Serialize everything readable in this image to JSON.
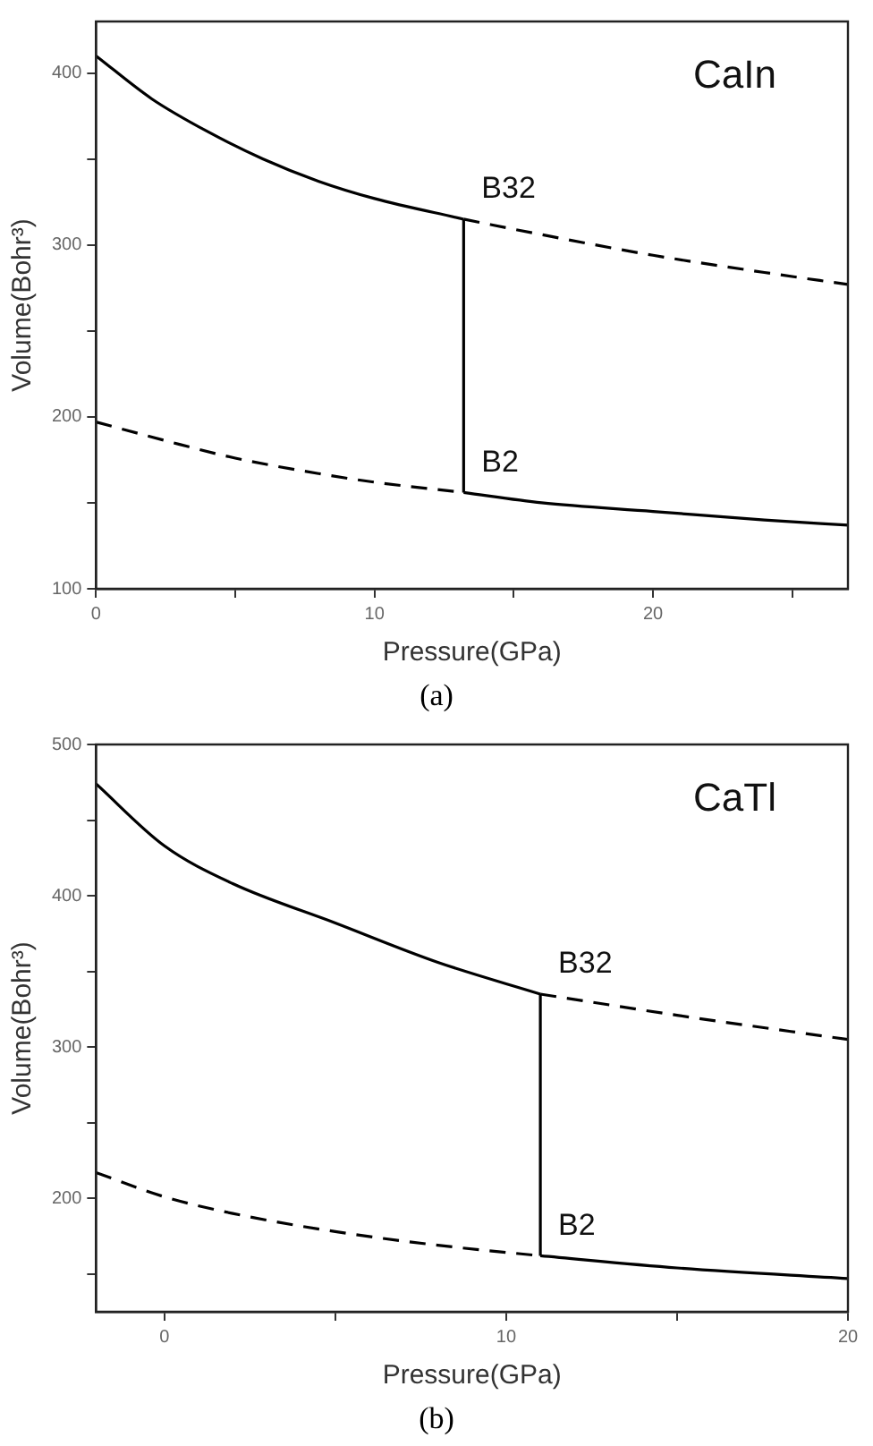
{
  "chart_data": [
    {
      "type": "line",
      "title": "CaIn",
      "xlabel": "Pressure(GPa)",
      "ylabel": "Volume(Bohr³)",
      "xlim": [
        0,
        27
      ],
      "xticks": [
        0,
        {
          "value": 5,
          "label": null
        },
        10,
        {
          "value": 15,
          "label": null
        },
        20,
        {
          "value": 25,
          "label": null
        }
      ],
      "ylim": [
        100,
        430
      ],
      "yticks": [
        100,
        {
          "value": 150,
          "label": null
        },
        200,
        {
          "value": 250,
          "label": null
        },
        300,
        {
          "value": 350,
          "label": null
        },
        400
      ],
      "grid": false,
      "legend": false,
      "marker": "none",
      "series": [
        {
          "color": "#000000",
          "line_style": "solid",
          "x": [
            0,
            2,
            4,
            6,
            8,
            10,
            13.2
          ],
          "values": [
            410,
            385,
            366,
            350,
            337,
            327,
            315
          ]
        },
        {
          "name": "B32",
          "color": "#000000",
          "line_style": "dashed",
          "x": [
            13.2,
            16,
            20,
            24,
            27
          ],
          "values": [
            315,
            306,
            294,
            284,
            277
          ]
        },
        {
          "color": "#000000",
          "line_style": "dashed",
          "x": [
            0,
            3,
            5,
            8,
            10,
            13.2
          ],
          "values": [
            197,
            184,
            176,
            167,
            162,
            156
          ]
        },
        {
          "name": "B2",
          "color": "#000000",
          "line_style": "solid",
          "x": [
            13.2,
            16,
            20,
            24,
            27
          ],
          "values": [
            156,
            150,
            145,
            140,
            137
          ]
        },
        {
          "color": "#000000",
          "line_style": "solid",
          "x": [
            13.2,
            13.2
          ],
          "values": [
            156,
            315
          ]
        }
      ],
      "annotations": [
        "(a)"
      ]
    },
    {
      "type": "line",
      "title": "CaTl",
      "xlabel": "Pressure(GPa)",
      "ylabel": "Volume(Bohr³)",
      "xlim": [
        -2,
        20
      ],
      "xticks": [
        0,
        {
          "value": 5,
          "label": null
        },
        10,
        {
          "value": 15,
          "label": null
        },
        20
      ],
      "ylim": [
        125,
        500
      ],
      "yticks": [
        {
          "value": 150,
          "label": null
        },
        200,
        {
          "value": 250,
          "label": null
        },
        300,
        {
          "value": 350,
          "label": null
        },
        400,
        {
          "value": 450,
          "label": null
        },
        500
      ],
      "grid": false,
      "legend": false,
      "marker": "none",
      "series": [
        {
          "color": "#000000",
          "line_style": "solid",
          "x": [
            -2,
            0,
            2,
            5,
            8,
            11
          ],
          "values": [
            474,
            433,
            408,
            382,
            356,
            335
          ]
        },
        {
          "name": "B32",
          "color": "#000000",
          "line_style": "dashed",
          "x": [
            11,
            15,
            20
          ],
          "values": [
            335,
            321,
            305
          ]
        },
        {
          "color": "#000000",
          "line_style": "dashed",
          "x": [
            -2,
            0,
            2,
            5,
            8,
            11
          ],
          "values": [
            217,
            201,
            190,
            178,
            169,
            162
          ]
        },
        {
          "name": "B2",
          "color": "#000000",
          "line_style": "solid",
          "x": [
            11,
            15,
            20
          ],
          "values": [
            162,
            154,
            147
          ]
        },
        {
          "color": "#000000",
          "line_style": "solid",
          "x": [
            11,
            11
          ],
          "values": [
            162,
            335
          ]
        }
      ],
      "annotations": [
        "(b)"
      ]
    }
  ]
}
